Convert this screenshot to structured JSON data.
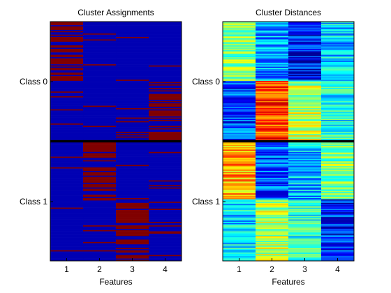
{
  "chart_data": [
    {
      "type": "heatmap",
      "title": "Cluster Assignments",
      "xlabel": "Features",
      "x_ticks": [
        "1",
        "2",
        "3",
        "4"
      ],
      "row_groups": [
        {
          "label": "Class 0",
          "rows": 100
        },
        {
          "label": "Class 1",
          "rows": 100
        }
      ],
      "colormap": "jet",
      "value_range": [
        0,
        1
      ],
      "description_values": "binary cluster membership; each feature column is active (1) for a contiguous block of rows",
      "feature_blocks": [
        {
          "feature": 1,
          "active_rows": [
            0,
            50
          ],
          "noise_rate": 0.06
        },
        {
          "feature": 4,
          "active_rows": [
            50,
            100
          ],
          "noise_rate": 0.06
        },
        {
          "feature": 2,
          "active_rows": [
            102,
            150
          ],
          "noise_rate": 0.06
        },
        {
          "feature": 3,
          "active_rows": [
            150,
            202
          ],
          "noise_rate": 0.06
        }
      ],
      "divider_rows": [
        100,
        102
      ]
    },
    {
      "type": "heatmap",
      "title": "Cluster Distances",
      "xlabel": "Features",
      "x_ticks": [
        "1",
        "2",
        "3",
        "4"
      ],
      "row_groups": [
        {
          "label": "Class 0",
          "rows": 100
        },
        {
          "label": "Class 1",
          "rows": 100
        }
      ],
      "colormap": "jet",
      "value_range": [
        0,
        1
      ],
      "segment_means": [
        {
          "rows": [
            0,
            50
          ],
          "values": [
            0.5,
            0.28,
            0.15,
            0.32
          ]
        },
        {
          "rows": [
            50,
            100
          ],
          "values": [
            0.2,
            0.8,
            0.55,
            0.4
          ]
        },
        {
          "rows": [
            100,
            102
          ],
          "values": [
            0.0,
            0.0,
            0.0,
            0.0
          ]
        },
        {
          "rows": [
            102,
            150
          ],
          "values": [
            0.7,
            0.2,
            0.3,
            0.5
          ]
        },
        {
          "rows": [
            150,
            202
          ],
          "values": [
            0.35,
            0.55,
            0.42,
            0.15
          ]
        }
      ]
    }
  ]
}
